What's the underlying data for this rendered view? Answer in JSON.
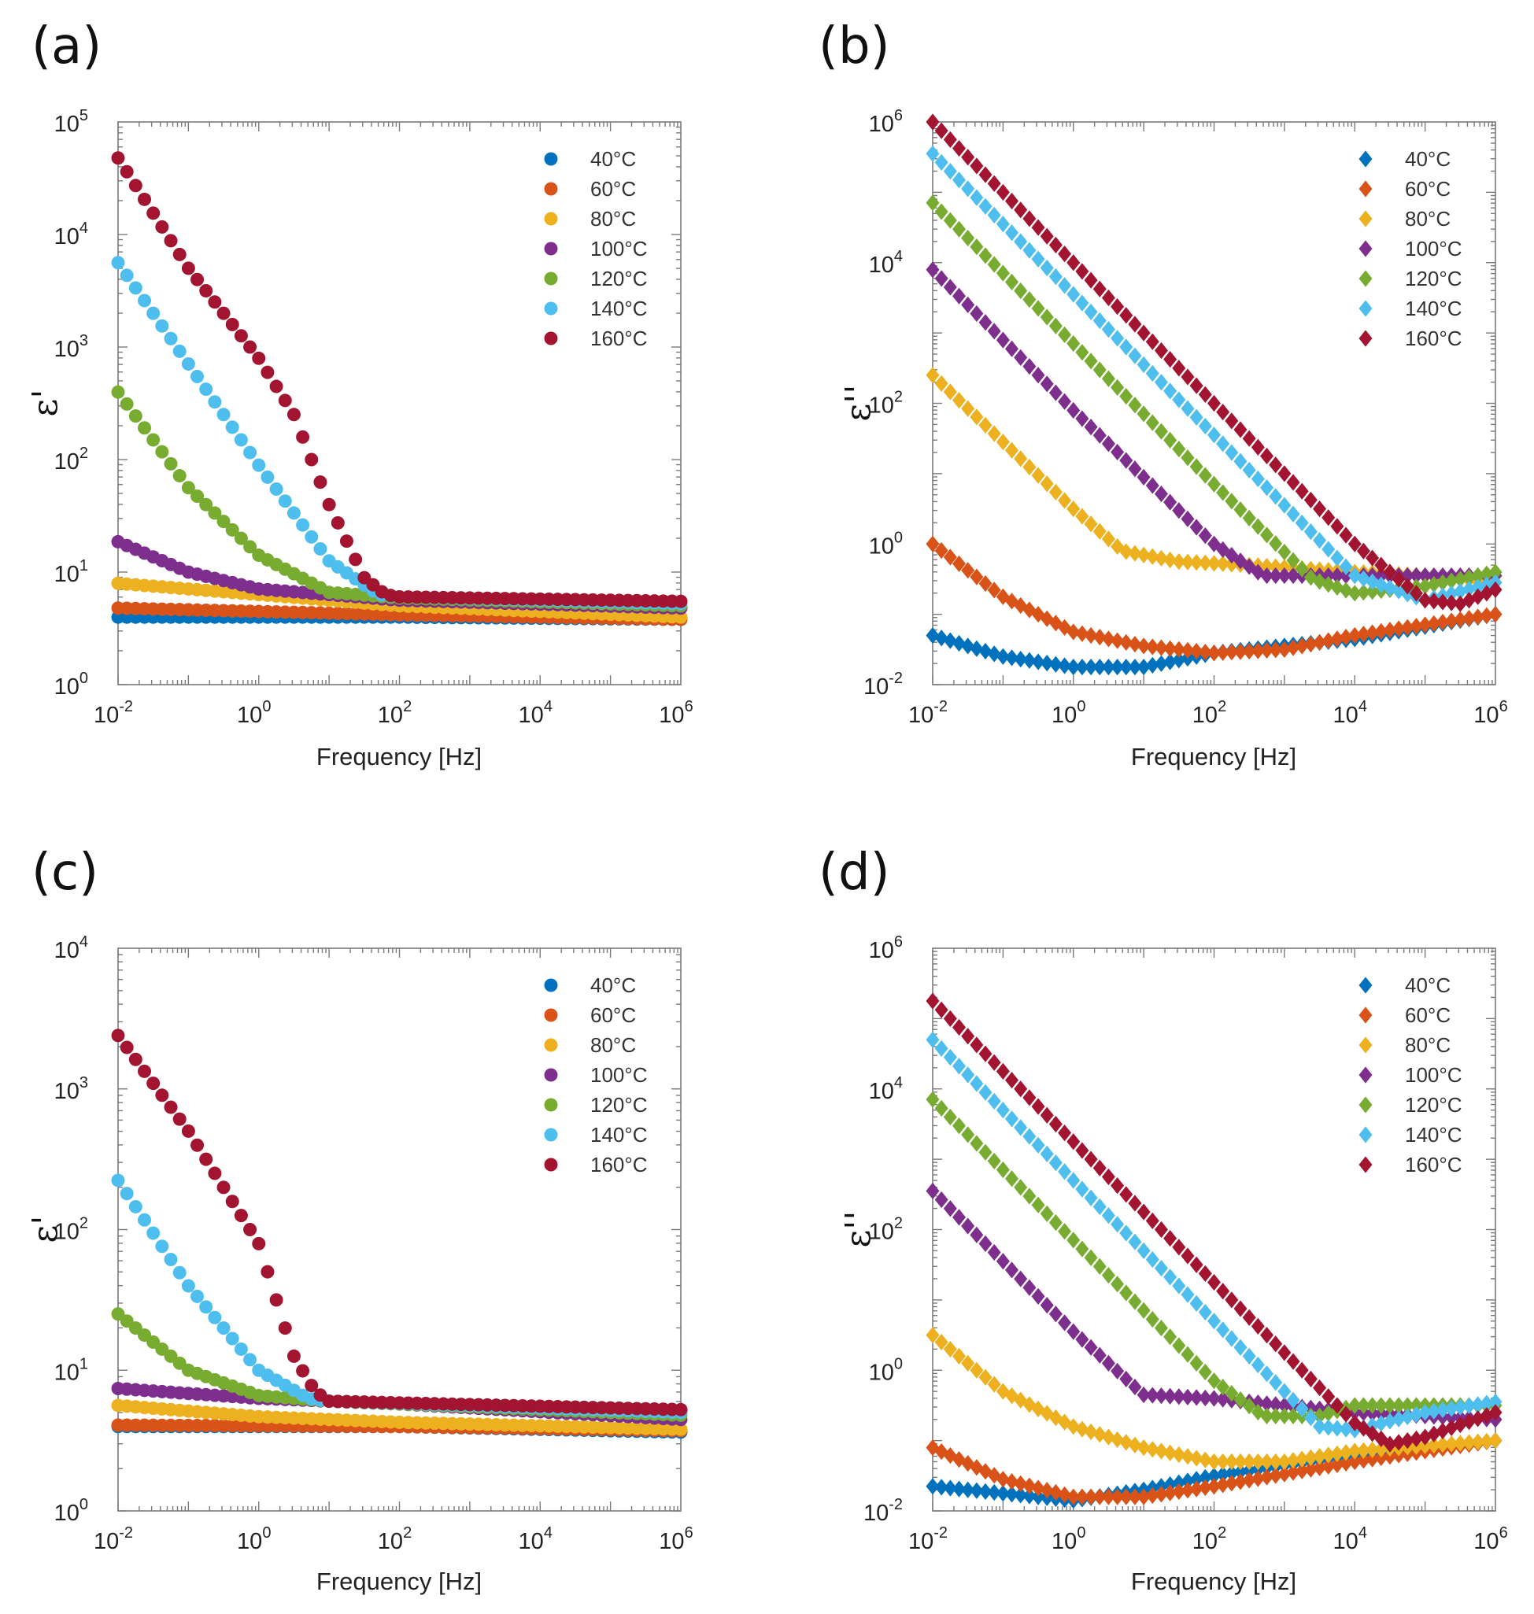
{
  "figure": {
    "colors": {
      "40°C": "#0072BD",
      "60°C": "#D95319",
      "80°C": "#EDB120",
      "100°C": "#7E2F8E",
      "120°C": "#77AC30",
      "140°C": "#4DBEEE",
      "160°C": "#A2142F"
    }
  },
  "chart_data": [
    {
      "panel": "(a)",
      "type": "scatter",
      "marker": "circle",
      "xlabel": "Frequency [Hz]",
      "ylabel": "ε'",
      "xscale": "log",
      "yscale": "log",
      "xlim_exp": [
        -2,
        6
      ],
      "ylim_exp": [
        0,
        5
      ],
      "xticks": [
        -2,
        0,
        2,
        4,
        6
      ],
      "yticks": [
        0,
        1,
        2,
        3,
        4,
        5
      ],
      "legend": "top-right",
      "series": [
        {
          "name": "40°C",
          "points": [
            [
              -2,
              0.6
            ],
            [
              2,
              0.6
            ],
            [
              6,
              0.58
            ]
          ]
        },
        {
          "name": "60°C",
          "points": [
            [
              -2,
              0.68
            ],
            [
              2,
              0.62
            ],
            [
              6,
              0.58
            ]
          ]
        },
        {
          "name": "80°C",
          "points": [
            [
              -2,
              0.9
            ],
            [
              0,
              0.8
            ],
            [
              2,
              0.7
            ],
            [
              6,
              0.6
            ]
          ]
        },
        {
          "name": "100°C",
          "points": [
            [
              -2,
              1.27
            ],
            [
              -1,
              1.0
            ],
            [
              0,
              0.85
            ],
            [
              2,
              0.75
            ],
            [
              6,
              0.68
            ]
          ]
        },
        {
          "name": "120°C",
          "points": [
            [
              -2,
              2.6
            ],
            [
              -1,
              1.75
            ],
            [
              0,
              1.15
            ],
            [
              1,
              0.82
            ],
            [
              2,
              0.77
            ],
            [
              6,
              0.7
            ]
          ]
        },
        {
          "name": "140°C",
          "points": [
            [
              -2,
              3.75
            ],
            [
              -1,
              2.85
            ],
            [
              0,
              1.95
            ],
            [
              1,
              1.1
            ],
            [
              1.7,
              0.8
            ],
            [
              2,
              0.78
            ],
            [
              6,
              0.72
            ]
          ]
        },
        {
          "name": "160°C",
          "points": [
            [
              -2,
              4.68
            ],
            [
              -1,
              3.7
            ],
            [
              0,
              2.9
            ],
            [
              0.5,
              2.4
            ],
            [
              1,
              1.6
            ],
            [
              1.5,
              0.95
            ],
            [
              1.8,
              0.8
            ],
            [
              2,
              0.78
            ],
            [
              6,
              0.74
            ]
          ]
        }
      ]
    },
    {
      "panel": "(b)",
      "type": "scatter",
      "marker": "diamond",
      "xlabel": "Frequency [Hz]",
      "ylabel": "ε''",
      "xscale": "log",
      "yscale": "log",
      "xlim_exp": [
        -2,
        6
      ],
      "ylim_exp": [
        -2,
        6
      ],
      "xticks": [
        -2,
        0,
        2,
        4,
        6
      ],
      "yticks": [
        -2,
        0,
        2,
        4,
        6
      ],
      "legend": "top-right",
      "series": [
        {
          "name": "40°C",
          "points": [
            [
              -2,
              -1.3
            ],
            [
              -1,
              -1.6
            ],
            [
              0,
              -1.75
            ],
            [
              1,
              -1.75
            ],
            [
              2,
              -1.55
            ],
            [
              4,
              -1.35
            ],
            [
              6,
              -1.0
            ]
          ]
        },
        {
          "name": "60°C",
          "points": [
            [
              -2,
              0.0
            ],
            [
              -1,
              -0.75
            ],
            [
              0,
              -1.25
            ],
            [
              1,
              -1.45
            ],
            [
              2,
              -1.55
            ],
            [
              3,
              -1.5
            ],
            [
              4,
              -1.3
            ],
            [
              6,
              -1.0
            ]
          ]
        },
        {
          "name": "80°C",
          "points": [
            [
              -2,
              2.4
            ],
            [
              -1,
              1.45
            ],
            [
              0,
              0.5
            ],
            [
              0.7,
              -0.1
            ],
            [
              1.5,
              -0.25
            ],
            [
              2.5,
              -0.3
            ],
            [
              4,
              -0.4
            ],
            [
              5,
              -0.45
            ],
            [
              6,
              -0.55
            ]
          ]
        },
        {
          "name": "100°C",
          "points": [
            [
              -2,
              3.9
            ],
            [
              0,
              1.9
            ],
            [
              2,
              0.0
            ],
            [
              2.7,
              -0.45
            ],
            [
              4,
              -0.45
            ],
            [
              6,
              -0.45
            ]
          ]
        },
        {
          "name": "120°C",
          "points": [
            [
              -2,
              4.85
            ],
            [
              0,
              2.85
            ],
            [
              2,
              0.85
            ],
            [
              3.4,
              -0.5
            ],
            [
              4,
              -0.7
            ],
            [
              5,
              -0.6
            ],
            [
              6,
              -0.4
            ]
          ]
        },
        {
          "name": "140°C",
          "points": [
            [
              -2,
              5.55
            ],
            [
              0,
              3.55
            ],
            [
              2,
              1.55
            ],
            [
              4,
              -0.45
            ],
            [
              5,
              -0.8
            ],
            [
              6,
              -0.55
            ]
          ]
        },
        {
          "name": "160°C",
          "points": [
            [
              -2,
              6.0
            ],
            [
              0,
              4.0
            ],
            [
              2,
              2.0
            ],
            [
              4,
              0.0
            ],
            [
              5,
              -0.8
            ],
            [
              5.5,
              -0.85
            ],
            [
              6,
              -0.65
            ]
          ]
        }
      ]
    },
    {
      "panel": "(c)",
      "type": "scatter",
      "marker": "circle",
      "xlabel": "Frequency [Hz]",
      "ylabel": "ε'",
      "xscale": "log",
      "yscale": "log",
      "xlim_exp": [
        -2,
        6
      ],
      "ylim_exp": [
        0,
        4
      ],
      "xticks": [
        -2,
        0,
        2,
        4,
        6
      ],
      "yticks": [
        0,
        1,
        2,
        3,
        4
      ],
      "legend": "top-right",
      "series": [
        {
          "name": "40°C",
          "points": [
            [
              -2,
              0.6
            ],
            [
              2,
              0.6
            ],
            [
              6,
              0.56
            ]
          ]
        },
        {
          "name": "60°C",
          "points": [
            [
              -2,
              0.61
            ],
            [
              2,
              0.6
            ],
            [
              6,
              0.57
            ]
          ]
        },
        {
          "name": "80°C",
          "points": [
            [
              -2,
              0.75
            ],
            [
              0,
              0.67
            ],
            [
              2,
              0.63
            ],
            [
              6,
              0.58
            ]
          ]
        },
        {
          "name": "100°C",
          "points": [
            [
              -2,
              0.87
            ],
            [
              0,
              0.8
            ],
            [
              2,
              0.76
            ],
            [
              6,
              0.65
            ]
          ]
        },
        {
          "name": "120°C",
          "points": [
            [
              -2,
              1.4
            ],
            [
              -1,
              1.0
            ],
            [
              0,
              0.82
            ],
            [
              1,
              0.78
            ],
            [
              6,
              0.68
            ]
          ]
        },
        {
          "name": "140°C",
          "points": [
            [
              -2,
              2.35
            ],
            [
              -1,
              1.6
            ],
            [
              0,
              1.0
            ],
            [
              0.7,
              0.8
            ],
            [
              1,
              0.78
            ],
            [
              6,
              0.7
            ]
          ]
        },
        {
          "name": "160°C",
          "points": [
            [
              -2,
              3.38
            ],
            [
              -1,
              2.7
            ],
            [
              0,
              1.9
            ],
            [
              0.5,
              1.1
            ],
            [
              0.8,
              0.85
            ],
            [
              1,
              0.78
            ],
            [
              6,
              0.72
            ]
          ]
        }
      ]
    },
    {
      "panel": "(d)",
      "type": "scatter",
      "marker": "diamond",
      "xlabel": "Frequency [Hz]",
      "ylabel": "ε''",
      "xscale": "log",
      "yscale": "log",
      "xlim_exp": [
        -2,
        6
      ],
      "ylim_exp": [
        -2,
        6
      ],
      "xticks": [
        -2,
        0,
        2,
        4,
        6
      ],
      "yticks": [
        -2,
        0,
        2,
        4,
        6
      ],
      "legend": "top-right",
      "series": [
        {
          "name": "40°C",
          "points": [
            [
              -2,
              -1.65
            ],
            [
              -1,
              -1.75
            ],
            [
              0,
              -1.85
            ],
            [
              1,
              -1.7
            ],
            [
              2,
              -1.5
            ],
            [
              4,
              -1.2
            ],
            [
              6,
              -1.0
            ]
          ]
        },
        {
          "name": "60°C",
          "points": [
            [
              -2,
              -1.1
            ],
            [
              -1,
              -1.55
            ],
            [
              0,
              -1.8
            ],
            [
              1,
              -1.8
            ],
            [
              2,
              -1.65
            ],
            [
              4,
              -1.3
            ],
            [
              6,
              -1.0
            ]
          ]
        },
        {
          "name": "80°C",
          "points": [
            [
              -2,
              0.5
            ],
            [
              -1,
              -0.3
            ],
            [
              0,
              -0.8
            ],
            [
              1,
              -1.1
            ],
            [
              2,
              -1.3
            ],
            [
              3,
              -1.3
            ],
            [
              4,
              -1.15
            ],
            [
              6,
              -1.0
            ]
          ]
        },
        {
          "name": "100°C",
          "points": [
            [
              -2,
              2.55
            ],
            [
              0,
              0.55
            ],
            [
              1,
              -0.35
            ],
            [
              2,
              -0.4
            ],
            [
              3,
              -0.5
            ],
            [
              4,
              -0.6
            ],
            [
              6,
              -0.7
            ]
          ]
        },
        {
          "name": "120°C",
          "points": [
            [
              -2,
              3.85
            ],
            [
              0,
              1.85
            ],
            [
              2,
              -0.15
            ],
            [
              2.7,
              -0.65
            ],
            [
              3.5,
              -0.65
            ],
            [
              4,
              -0.5
            ],
            [
              6,
              -0.5
            ]
          ]
        },
        {
          "name": "140°C",
          "points": [
            [
              -2,
              4.7
            ],
            [
              0,
              2.7
            ],
            [
              2,
              0.7
            ],
            [
              3.5,
              -0.8
            ],
            [
              4,
              -0.85
            ],
            [
              5,
              -0.6
            ],
            [
              6,
              -0.45
            ]
          ]
        },
        {
          "name": "160°C",
          "points": [
            [
              -2,
              5.25
            ],
            [
              0,
              3.25
            ],
            [
              2,
              1.25
            ],
            [
              4,
              -0.75
            ],
            [
              4.5,
              -1.05
            ],
            [
              5,
              -0.95
            ],
            [
              6,
              -0.6
            ]
          ]
        }
      ]
    }
  ]
}
